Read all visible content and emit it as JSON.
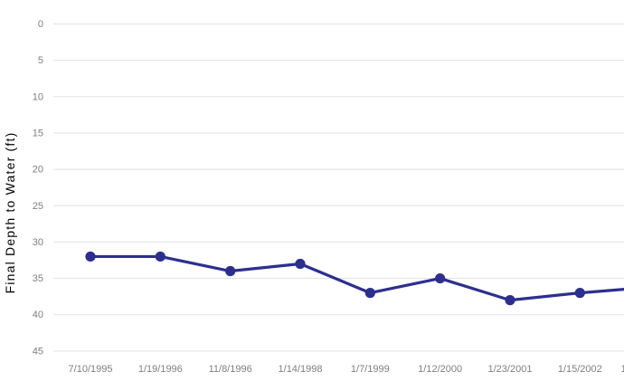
{
  "chart_data": {
    "type": "line",
    "title": "",
    "xlabel": "",
    "ylabel": "Final Depth to Water (ft)",
    "categories": [
      "7/10/1995",
      "1/19/1996",
      "11/8/1996",
      "1/14/1998",
      "1/7/1999",
      "1/12/2000",
      "1/23/2001",
      "1/15/2002"
    ],
    "series": [
      {
        "name": "Final Depth to Water (ft)",
        "values": [
          32,
          32,
          34,
          33,
          37,
          35,
          38,
          37
        ]
      }
    ],
    "y_axis": {
      "min": 0,
      "max": 45,
      "tick_step": 5,
      "ticks": [
        "0",
        "5",
        "10",
        "15",
        "20",
        "25",
        "30",
        "35",
        "40",
        "45"
      ],
      "inverted": true
    },
    "grid": "horizontal-only",
    "legend": "none",
    "marker": "filled-circle",
    "continues_beyond_right_edge": {
      "exit_value": 36.5,
      "clipped_next_label_fragment": "1"
    }
  },
  "colors": {
    "line": "#2d2f8e",
    "grid": "#e2e2e2",
    "tick_text": "#7f7f7f",
    "axis_title_text": "#7f7f7f",
    "background": "#ffffff"
  }
}
